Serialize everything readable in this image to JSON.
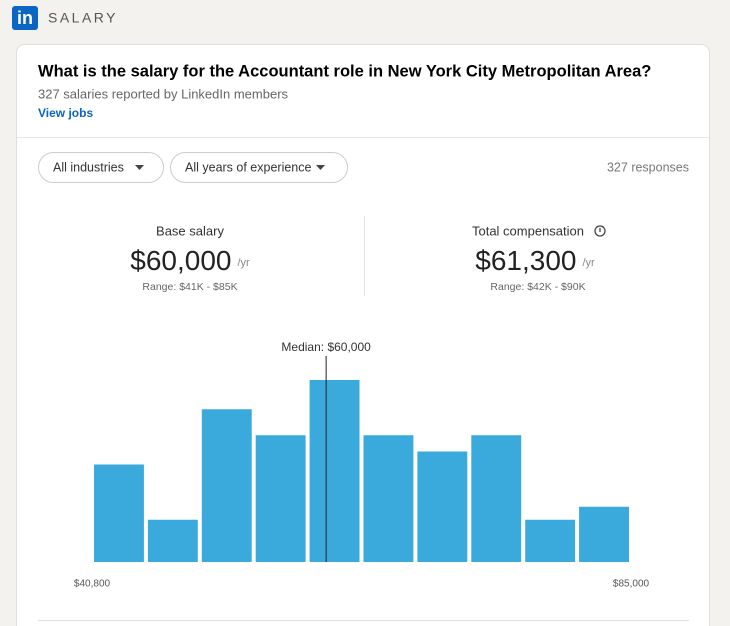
{
  "header": {
    "logo": "in",
    "title": "SALARY"
  },
  "card": {
    "title": "What is the salary for the Accountant role in New York City Metropolitan Area?",
    "subtitle": "327 salaries reported by LinkedIn members",
    "link": "View jobs",
    "filters": [
      "All industries",
      "All years of experience"
    ],
    "responses": "327 responses",
    "base": {
      "label": "Base salary",
      "amount": "$60,000",
      "unit": "/yr",
      "range": "Range: $41K - $85K"
    },
    "total": {
      "label": "Total compensation",
      "amount": "$61,300",
      "unit": "/yr",
      "range": "Range: $42K - $90K"
    }
  },
  "chart_data": {
    "type": "histogram",
    "bins": [
      40800,
      45220,
      49640,
      54060,
      58480,
      62900,
      67320,
      71740,
      76160,
      80580,
      85000
    ],
    "values": [
      30,
      13,
      47,
      39,
      56,
      39,
      34,
      39,
      13,
      17
    ],
    "color": "#3aa9dc",
    "xlim": [
      40800,
      85000
    ],
    "xticks": [
      {
        "value": 40800,
        "label": "$40,800"
      },
      {
        "value": 85000,
        "label": "$85,000"
      }
    ],
    "ylim": [
      0,
      60
    ],
    "median": {
      "value": 60000,
      "label": "Median: $60,000"
    }
  }
}
